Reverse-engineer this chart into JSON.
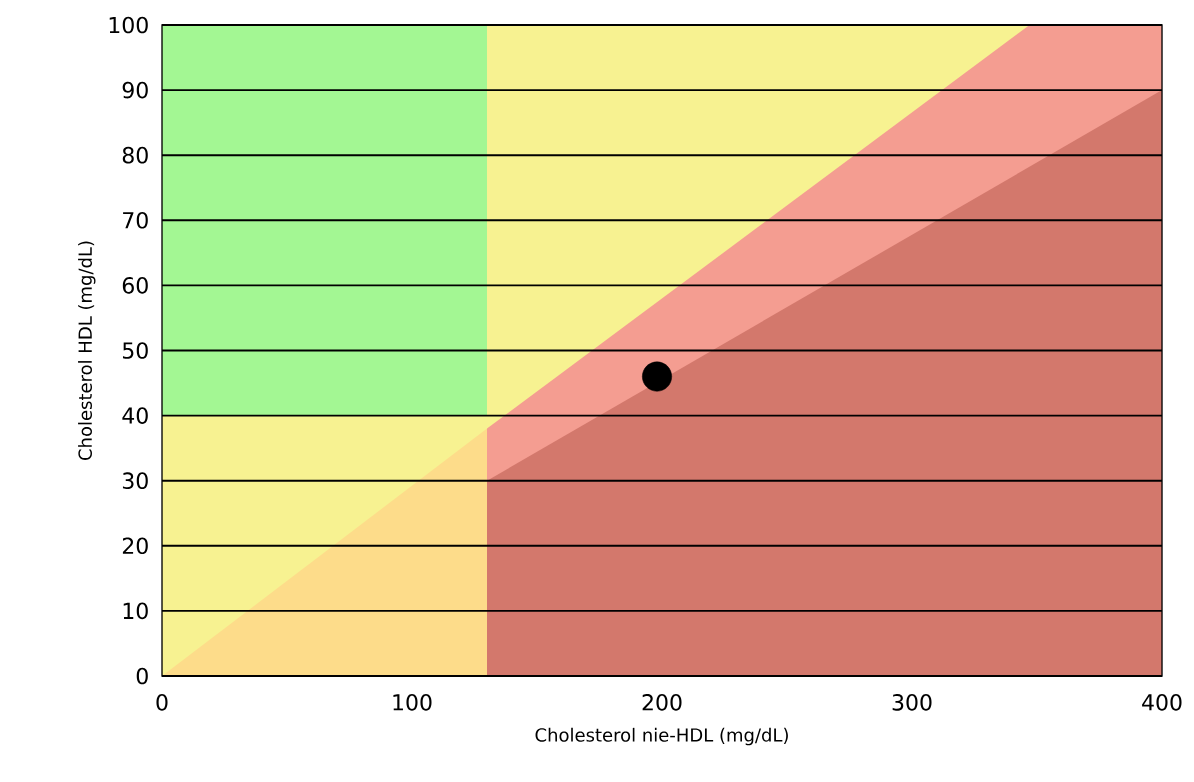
{
  "chart_data": {
    "type": "area",
    "xlabel": "Cholesterol nie-HDL (mg/dL)",
    "ylabel": "Cholesterol HDL (mg/dL)",
    "xlim": [
      0,
      400
    ],
    "ylim": [
      0,
      100
    ],
    "xticks": [
      0,
      100,
      200,
      300,
      400
    ],
    "yticks": [
      0,
      10,
      20,
      30,
      40,
      50,
      60,
      70,
      80,
      90,
      100
    ],
    "grid": "y",
    "series": [
      {
        "color": "#a3f793",
        "x": [
          0,
          130
        ],
        "values": [
          100,
          100
        ]
      },
      {
        "color": "#f7f291",
        "x": [
          0,
          130,
          130,
          347
        ],
        "values": [
          40,
          40,
          100,
          100
        ]
      },
      {
        "color": "#f49d91",
        "x": [
          130,
          347,
          400
        ],
        "values": [
          38,
          100,
          100
        ]
      },
      {
        "color": "#d3786c",
        "x": [
          130,
          400
        ],
        "values": [
          30,
          90
        ]
      },
      {
        "color": "#fddc8a",
        "x": [
          0,
          130
        ],
        "values": [
          0,
          38
        ]
      },
      {
        "type": "scatter",
        "color": "#000000",
        "marker": "circle",
        "x": [
          198
        ],
        "values": [
          46
        ]
      }
    ]
  }
}
